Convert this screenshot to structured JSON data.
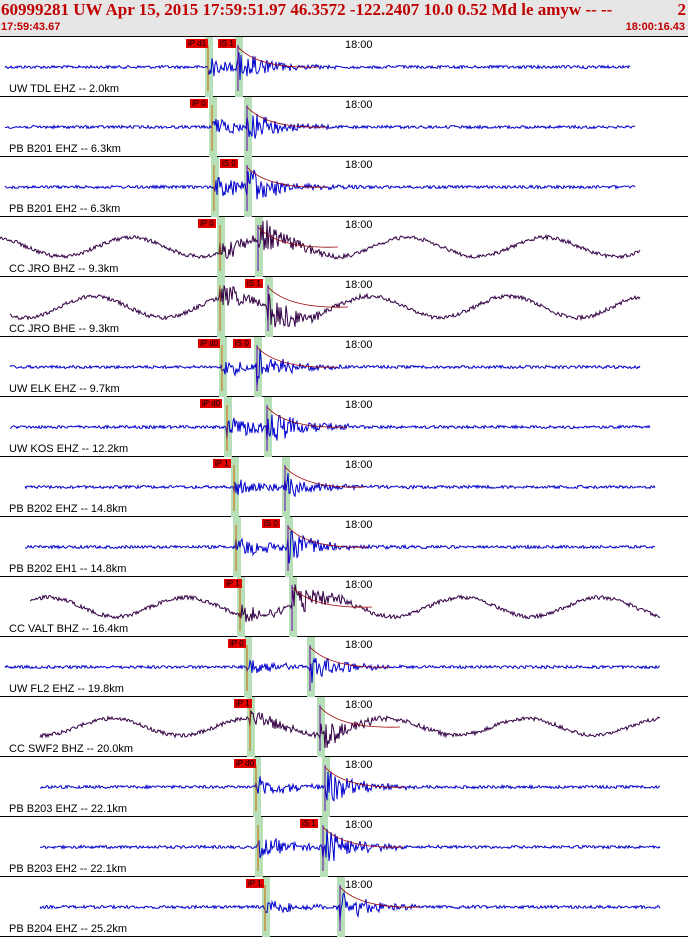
{
  "header": {
    "title": "60999281 UW Apr 15, 2015 17:59:51.97    46.3572 -122.2407 10.0 0.52 Md le amyw -- --",
    "title_right": "2",
    "time_start": "17:59:43.67",
    "time_end": "18:00:16.43"
  },
  "time_mark": "18:00",
  "colors": {
    "header_bg": "#e6e6e6",
    "title_red": "#c00000",
    "trace_blue": "#0000cc",
    "trace_dark": "#330044",
    "pick_red": "#e00000",
    "window_green": "#b8e0b8"
  },
  "traces": [
    {
      "label": "UW TDL EHZ -- 2.0km",
      "color": "blue",
      "picks": [
        "iP d1",
        "iS 1"
      ],
      "amp": 0.7,
      "lp": 0
    },
    {
      "label": "PB B201 EHZ -- 6.3km",
      "color": "blue",
      "picks": [
        "iP 0"
      ],
      "amp": 0.7,
      "lp": 0
    },
    {
      "label": "PB B201 EH2 -- 6.3km",
      "color": "blue",
      "picks": [
        "iS 0"
      ],
      "amp": 0.9,
      "lp": 0
    },
    {
      "label": "CC JRO BHZ -- 9.3km",
      "color": "dark",
      "picks": [
        "iP 0"
      ],
      "amp": 0.8,
      "lp": 1
    },
    {
      "label": "CC JRO BHE -- 9.3km",
      "color": "dark",
      "picks": [
        "iS 1"
      ],
      "amp": 0.9,
      "lp": 1
    },
    {
      "label": "UW ELK EHZ -- 9.7km",
      "color": "blue",
      "picks": [
        "iP d0",
        "iS 0"
      ],
      "amp": 0.7,
      "lp": 0
    },
    {
      "label": "UW KOS EHZ -- 12.2km",
      "color": "blue",
      "picks": [
        "iP d0"
      ],
      "amp": 0.9,
      "lp": 0
    },
    {
      "label": "PB B202 EHZ -- 14.8km",
      "color": "blue",
      "picks": [
        "iP 1"
      ],
      "amp": 0.6,
      "lp": 0
    },
    {
      "label": "PB B202 EH1 -- 14.8km",
      "color": "blue",
      "picks": [
        "iS 0"
      ],
      "amp": 0.8,
      "lp": 0
    },
    {
      "label": "CC VALT BHZ -- 16.4km",
      "color": "dark",
      "picks": [
        "iP 1"
      ],
      "amp": 0.8,
      "lp": 1
    },
    {
      "label": "UW FL2 EHZ -- 19.8km",
      "color": "blue",
      "picks": [
        "iP 0"
      ],
      "amp": 0.7,
      "lp": 0
    },
    {
      "label": "CC SWF2 BHZ -- 20.0km",
      "color": "dark",
      "picks": [
        "iP 1"
      ],
      "amp": 0.7,
      "lp": 1
    },
    {
      "label": "PB B203 EHZ -- 22.1km",
      "color": "blue",
      "picks": [
        "iP d0"
      ],
      "amp": 0.8,
      "lp": 0
    },
    {
      "label": "PB B203 EH2 -- 22.1km",
      "color": "blue",
      "picks": [
        "iS 1"
      ],
      "amp": 0.8,
      "lp": 0
    },
    {
      "label": "PB B204 EHZ -- 25.2km",
      "color": "blue",
      "picks": [
        "iP 1"
      ],
      "amp": 0.7,
      "lp": 0
    }
  ]
}
